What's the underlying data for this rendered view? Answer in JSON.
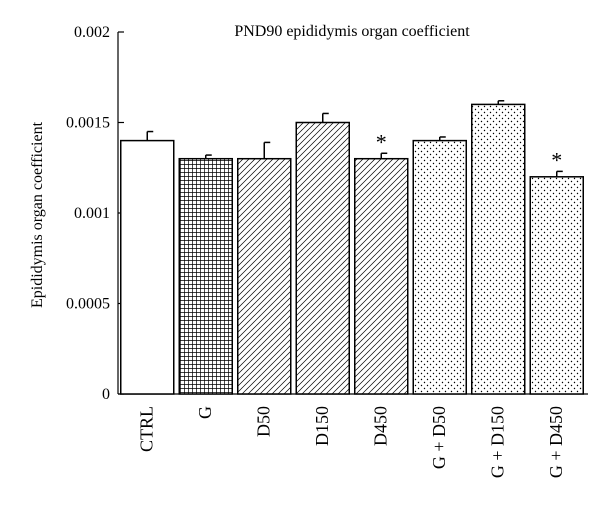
{
  "chart_data": {
    "type": "bar",
    "title": "PND90 epididymis organ coefficient",
    "xlabel": "",
    "ylabel": "Epididymis organ coefficient",
    "ylim": [
      0,
      0.002
    ],
    "yticks": [
      0,
      0.0005,
      0.001,
      0.0015,
      0.002
    ],
    "ytick_labels": [
      "0",
      "0.0005",
      "0.001",
      "0.0015",
      "0.002"
    ],
    "categories": [
      "CTRL",
      "G",
      "D50",
      "D150",
      "D450",
      "G + D50",
      "G + D150",
      "G + D450"
    ],
    "values": [
      0.0014,
      0.0013,
      0.0013,
      0.0015,
      0.0013,
      0.0014,
      0.0016,
      0.0012
    ],
    "errors": [
      5e-05,
      2e-05,
      9e-05,
      5e-05,
      3e-05,
      2e-05,
      2e-05,
      3e-05
    ],
    "patterns": [
      "none",
      "grid",
      "diagonal",
      "diagonal",
      "diagonal",
      "dots",
      "dots",
      "dots"
    ],
    "significance": [
      "",
      "",
      "",
      "",
      "*",
      "",
      "",
      "*"
    ],
    "grid": false,
    "legend": "none",
    "colors": {
      "bar_stroke": "#000000",
      "bar_fill": "#ffffff",
      "pattern": "#000000"
    }
  }
}
